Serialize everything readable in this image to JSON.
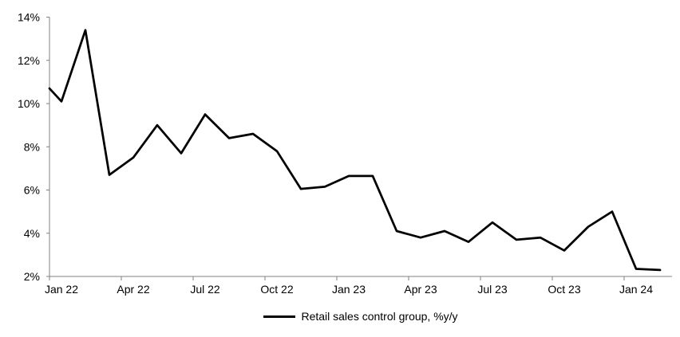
{
  "chart_data": {
    "type": "line",
    "title": "",
    "x": [
      "Jan 22",
      "Feb 22",
      "Mar 22",
      "Apr 22",
      "May 22",
      "Jun 22",
      "Jul 22",
      "Aug 22",
      "Sep 22",
      "Oct 22",
      "Nov 22",
      "Dec 22",
      "Jan 23",
      "Feb 23",
      "Mar 23",
      "Apr 23",
      "May 23",
      "Jun 23",
      "Jul 23",
      "Aug 23",
      "Sep 23",
      "Oct 23",
      "Nov 23",
      "Dec 23",
      "Jan 24",
      "Feb 24"
    ],
    "series": [
      {
        "name": "Retail sales control group, %y/y",
        "color": "#000000",
        "values": [
          10.1,
          13.4,
          6.7,
          7.5,
          9.0,
          7.7,
          9.5,
          8.4,
          8.6,
          7.8,
          6.05,
          6.15,
          6.65,
          6.65,
          4.1,
          3.8,
          4.1,
          3.6,
          4.5,
          3.7,
          3.8,
          3.2,
          4.3,
          5.0,
          2.35,
          2.3
        ]
      }
    ],
    "left_edge_entry_value": 10.7,
    "x_tick_labels": [
      "Jan 22",
      "Apr 22",
      "Jul 22",
      "Oct 22",
      "Jan 23",
      "Apr 23",
      "Jul 23",
      "Oct 23",
      "Jan 24"
    ],
    "x_tick_every_months": 3,
    "y_tick_labels": [
      "2%",
      "4%",
      "6%",
      "8%",
      "10%",
      "12%",
      "14%"
    ],
    "ylim": [
      2,
      14
    ],
    "y_step": 2,
    "y_unit": "%",
    "grid": false,
    "legend": {
      "position": "bottom-center",
      "label": "Retail sales control group, %y/y"
    },
    "colors": {
      "series": "#000000",
      "axis": "#808080",
      "text": "#000000",
      "background": "#ffffff"
    }
  }
}
